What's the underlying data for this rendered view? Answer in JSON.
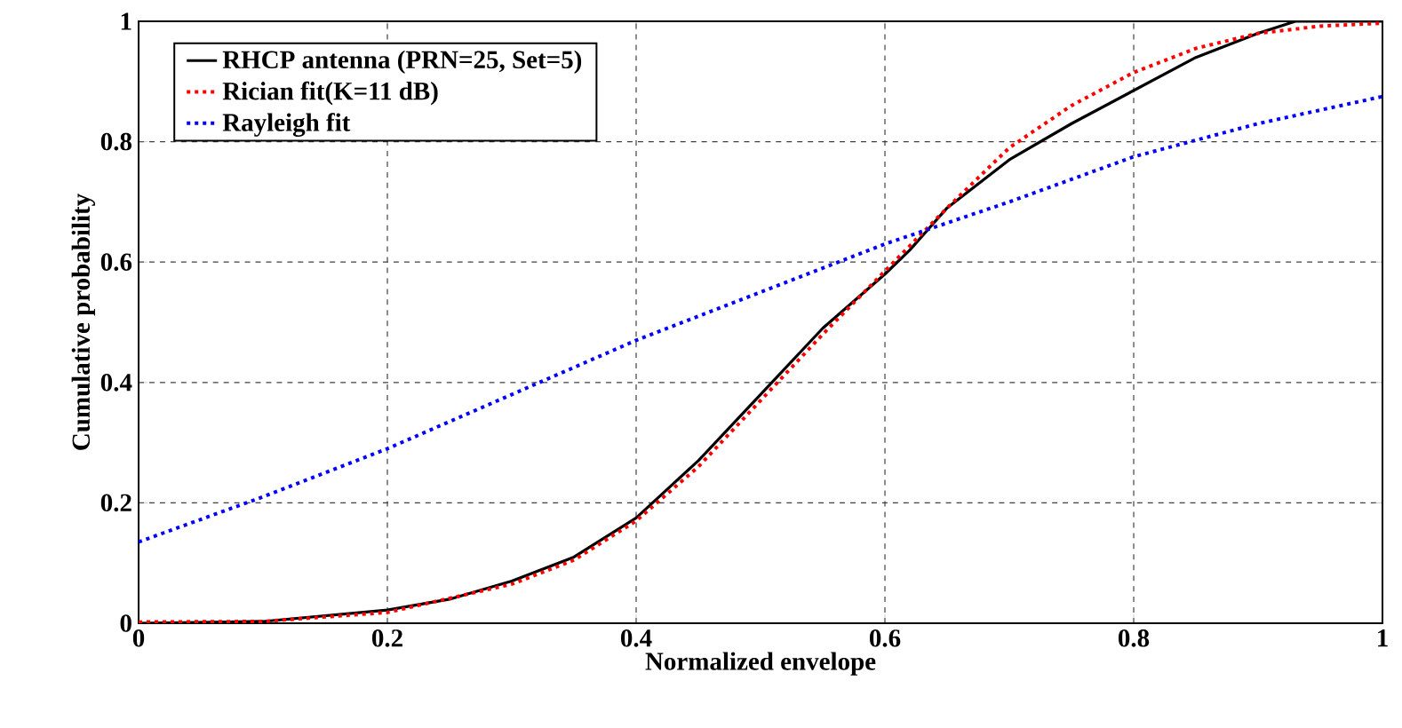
{
  "chart_data": {
    "type": "line",
    "xlabel": "Normalized envelope",
    "ylabel": "Cumulative probability",
    "xlim": [
      0,
      1
    ],
    "ylim": [
      0,
      1
    ],
    "xticks": [
      0,
      0.2,
      0.4,
      0.6,
      0.8,
      1
    ],
    "yticks": [
      0,
      0.2,
      0.4,
      0.6,
      0.8,
      1
    ],
    "grid": true,
    "legend": "top left",
    "marker": "none",
    "series": [
      {
        "name": "RHCP antenna (PRN=25, Set=5)",
        "color": "#000000",
        "line_style": "solid",
        "x": [
          0,
          0.1,
          0.2,
          0.25,
          0.3,
          0.35,
          0.4,
          0.45,
          0.5,
          0.55,
          0.6,
          0.62,
          0.65,
          0.7,
          0.75,
          0.8,
          0.85,
          0.9,
          0.93,
          1
        ],
        "values": [
          0,
          0.003,
          0.022,
          0.04,
          0.07,
          0.11,
          0.175,
          0.27,
          0.38,
          0.49,
          0.58,
          0.62,
          0.69,
          0.77,
          0.83,
          0.885,
          0.94,
          0.98,
          1,
          1
        ]
      },
      {
        "name": "Rician fit(K=11 dB)",
        "color": "#ff0000",
        "line_style": "dotted",
        "x": [
          0,
          0.1,
          0.2,
          0.3,
          0.35,
          0.4,
          0.45,
          0.5,
          0.55,
          0.6,
          0.65,
          0.7,
          0.75,
          0.8,
          0.85,
          0.9,
          0.95,
          1
        ],
        "values": [
          0.002,
          0.003,
          0.018,
          0.065,
          0.105,
          0.17,
          0.26,
          0.37,
          0.48,
          0.585,
          0.69,
          0.79,
          0.86,
          0.915,
          0.955,
          0.98,
          0.992,
          0.997
        ]
      },
      {
        "name": "Rayleigh fit",
        "color": "#0000ff",
        "line_style": "dotted",
        "x": [
          0,
          0.1,
          0.2,
          0.3,
          0.4,
          0.5,
          0.6,
          0.7,
          0.8,
          0.9,
          1
        ],
        "values": [
          0.135,
          0.21,
          0.29,
          0.38,
          0.47,
          0.55,
          0.63,
          0.7,
          0.775,
          0.83,
          0.875
        ]
      }
    ]
  }
}
